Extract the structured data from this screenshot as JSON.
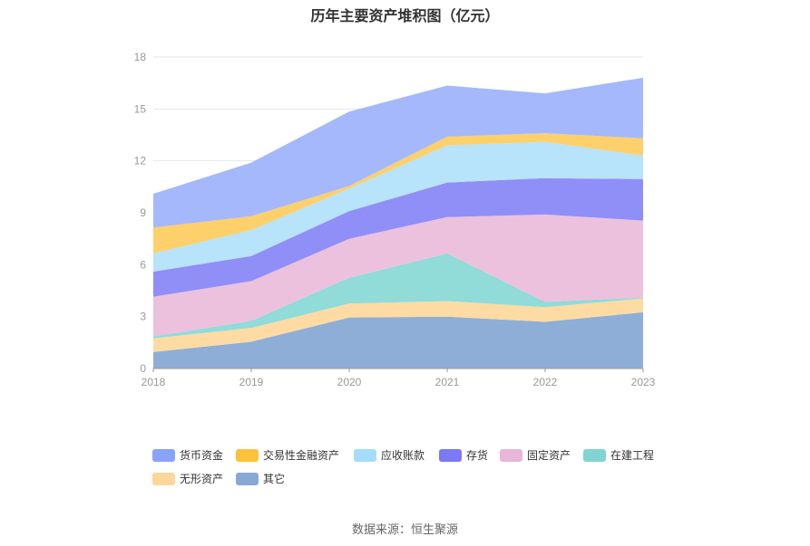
{
  "chart_data": {
    "type": "area",
    "stacked": true,
    "title": "历年主要资产堆积图（亿元）",
    "x": [
      "2018",
      "2019",
      "2020",
      "2021",
      "2022",
      "2023"
    ],
    "ylim": [
      0,
      18
    ],
    "yticks": [
      0,
      3,
      6,
      9,
      12,
      15,
      18
    ],
    "grid": true,
    "legend_position": "bottom",
    "series": [
      {
        "name": "其它",
        "color": "#8eaed8",
        "values": [
          0.95,
          1.55,
          2.95,
          3.0,
          2.7,
          3.25
        ]
      },
      {
        "name": "无形资产",
        "color": "#fddba3",
        "values": [
          0.8,
          0.8,
          0.8,
          0.9,
          0.85,
          0.8
        ]
      },
      {
        "name": "在建工程",
        "color": "#91dbd9",
        "values": [
          0.1,
          0.4,
          1.5,
          2.75,
          0.3,
          0.05
        ]
      },
      {
        "name": "固定资产",
        "color": "#ecc1dd",
        "values": [
          2.3,
          2.3,
          2.25,
          2.1,
          5.05,
          4.45
        ]
      },
      {
        "name": "存货",
        "color": "#8f8ff7",
        "values": [
          1.45,
          1.45,
          1.6,
          2.0,
          2.1,
          2.4
        ]
      },
      {
        "name": "应收账款",
        "color": "#b7e3fb",
        "values": [
          1.05,
          1.5,
          1.3,
          2.15,
          2.1,
          1.35
        ]
      },
      {
        "name": "交易性金融资产",
        "color": "#fdd06b",
        "values": [
          1.5,
          0.8,
          0.15,
          0.5,
          0.5,
          1.0
        ]
      },
      {
        "name": "货币资金",
        "color": "#a4b8fb",
        "values": [
          1.95,
          3.1,
          4.3,
          2.95,
          2.3,
          3.5
        ]
      }
    ]
  },
  "legend": [
    {
      "name": "货币资金",
      "color": "#88a3f9"
    },
    {
      "name": "交易性金融资产",
      "color": "#fdc239"
    },
    {
      "name": "应收账款",
      "color": "#a5dcf9"
    },
    {
      "name": "存货",
      "color": "#7a7af2"
    },
    {
      "name": "固定资产",
      "color": "#e8b6d8"
    },
    {
      "name": "在建工程",
      "color": "#81d4d2"
    },
    {
      "name": "无形资产",
      "color": "#fcd79a"
    },
    {
      "name": "其它",
      "color": "#86a9d6"
    }
  ],
  "source": "数据来源：恒生聚源"
}
